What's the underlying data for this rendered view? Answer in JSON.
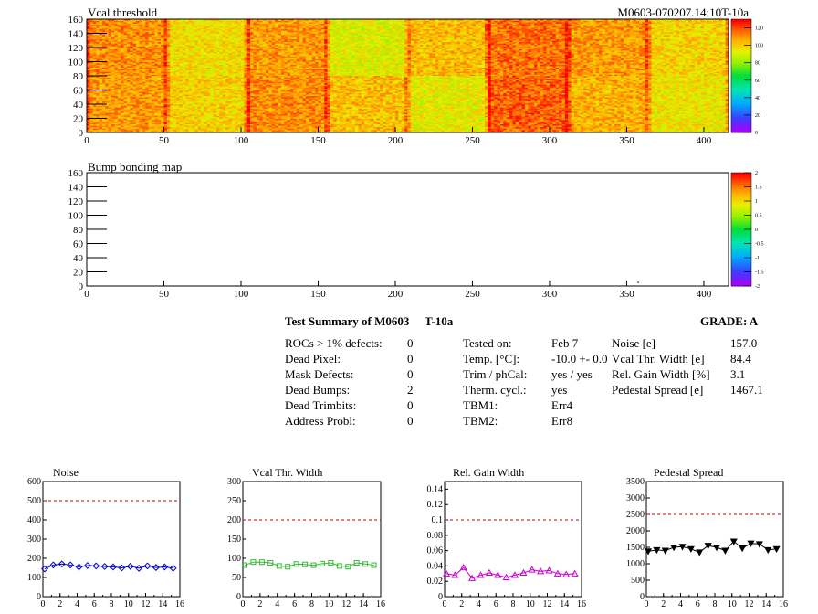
{
  "chart_data": [
    {
      "type": "heatmap",
      "title": "Vcal threshold",
      "module_label": "M0603-070207.14:10T-10a",
      "xlim": [
        0,
        416
      ],
      "ylim": [
        0,
        160
      ],
      "x_ticks": [
        "0",
        "50",
        "100",
        "150",
        "200",
        "250",
        "300",
        "350",
        "400"
      ],
      "y_ticks": [
        "0",
        "20",
        "40",
        "60",
        "80",
        "100",
        "120",
        "140",
        "160"
      ],
      "z_ticks": [
        "0",
        "20",
        "40",
        "60",
        "80",
        "100",
        "120"
      ],
      "zlim": [
        0,
        130
      ],
      "roc_blocks": [
        {
          "row": "top",
          "col": 0,
          "value": 112
        },
        {
          "row": "top",
          "col": 1,
          "value": 98
        },
        {
          "row": "top",
          "col": 2,
          "value": 110
        },
        {
          "row": "top",
          "col": 3,
          "value": 92
        },
        {
          "row": "top",
          "col": 4,
          "value": 104
        },
        {
          "row": "top",
          "col": 5,
          "value": 116
        },
        {
          "row": "top",
          "col": 6,
          "value": 110
        },
        {
          "row": "top",
          "col": 7,
          "value": 100
        },
        {
          "row": "bottom",
          "col": 0,
          "value": 110
        },
        {
          "row": "bottom",
          "col": 1,
          "value": 100
        },
        {
          "row": "bottom",
          "col": 2,
          "value": 112
        },
        {
          "row": "bottom",
          "col": 3,
          "value": 104
        },
        {
          "row": "bottom",
          "col": 4,
          "value": 94
        },
        {
          "row": "bottom",
          "col": 5,
          "value": 118
        },
        {
          "row": "bottom",
          "col": 6,
          "value": 106
        },
        {
          "row": "bottom",
          "col": 7,
          "value": 96
        }
      ]
    },
    {
      "type": "heatmap",
      "title": "Bump bonding map",
      "xlim": [
        0,
        416
      ],
      "ylim": [
        0,
        160
      ],
      "x_ticks": [
        "0",
        "50",
        "100",
        "150",
        "200",
        "250",
        "300",
        "350",
        "400"
      ],
      "y_ticks": [
        "0",
        "20",
        "40",
        "60",
        "80",
        "100",
        "120",
        "140",
        "160"
      ],
      "z_ticks": [
        "-2",
        "-1.5",
        "-1",
        "-0.5",
        "0",
        "0.5",
        "1",
        "1.5",
        "2"
      ],
      "zlim": [
        -2,
        2
      ],
      "points": [
        {
          "x": 357,
          "y": 6
        }
      ]
    },
    {
      "type": "line",
      "title": "Noise",
      "x": [
        0,
        1,
        2,
        3,
        4,
        5,
        6,
        7,
        8,
        9,
        10,
        11,
        12,
        13,
        14,
        15
      ],
      "values": [
        145,
        165,
        170,
        165,
        155,
        162,
        160,
        157,
        155,
        150,
        158,
        148,
        160,
        152,
        155,
        148
      ],
      "limit": 500,
      "xlim": [
        0,
        16
      ],
      "ylim": [
        0,
        600
      ],
      "x_ticks": [
        "0",
        "2",
        "4",
        "6",
        "8",
        "10",
        "12",
        "14",
        "16"
      ],
      "y_ticks": [
        "0",
        "100",
        "200",
        "300",
        "400",
        "500",
        "600"
      ],
      "color": "#0000cc",
      "marker": "diamond"
    },
    {
      "type": "line",
      "title": "Vcal Thr. Width",
      "x": [
        0,
        1,
        2,
        3,
        4,
        5,
        6,
        7,
        8,
        9,
        10,
        11,
        12,
        13,
        14,
        15
      ],
      "values": [
        82,
        90,
        90,
        88,
        80,
        78,
        85,
        84,
        82,
        86,
        88,
        80,
        78,
        88,
        85,
        82
      ],
      "limit": 200,
      "xlim": [
        0,
        16
      ],
      "ylim": [
        0,
        300
      ],
      "x_ticks": [
        "0",
        "2",
        "4",
        "6",
        "8",
        "10",
        "12",
        "14",
        "16"
      ],
      "y_ticks": [
        "0",
        "50",
        "100",
        "150",
        "200",
        "250",
        "300"
      ],
      "color": "#33bb33",
      "marker": "square"
    },
    {
      "type": "line",
      "title": "Rel. Gain Width",
      "x": [
        0,
        1,
        2,
        3,
        4,
        5,
        6,
        7,
        8,
        9,
        10,
        11,
        12,
        13,
        14,
        15
      ],
      "values": [
        0.03,
        0.028,
        0.038,
        0.024,
        0.028,
        0.031,
        0.028,
        0.025,
        0.028,
        0.031,
        0.035,
        0.033,
        0.034,
        0.03,
        0.029,
        0.03
      ],
      "limit": 0.1,
      "xlim": [
        0,
        16
      ],
      "ylim": [
        0,
        0.15
      ],
      "x_ticks": [
        "0",
        "2",
        "4",
        "6",
        "8",
        "10",
        "12",
        "14",
        "16"
      ],
      "y_ticks": [
        "0",
        "0.02",
        "0.04",
        "0.06",
        "0.08",
        "0.1",
        "0.12",
        "0.14"
      ],
      "color": "#cc00cc",
      "marker": "triangle"
    },
    {
      "type": "line",
      "title": "Pedestal Spread",
      "x": [
        0,
        1,
        2,
        3,
        4,
        5,
        6,
        7,
        8,
        9,
        10,
        11,
        12,
        13,
        14,
        15
      ],
      "values": [
        1380,
        1420,
        1400,
        1500,
        1520,
        1450,
        1350,
        1550,
        1500,
        1400,
        1680,
        1470,
        1620,
        1600,
        1420,
        1450
      ],
      "limit": 2500,
      "xlim": [
        0,
        16
      ],
      "ylim": [
        0,
        3500
      ],
      "x_ticks": [
        "0",
        "2",
        "4",
        "6",
        "8",
        "10",
        "12",
        "14",
        "16"
      ],
      "y_ticks": [
        "0",
        "500",
        "1000",
        "1500",
        "2000",
        "2500",
        "3000",
        "3500"
      ],
      "color": "#000000",
      "marker": "triangle-down"
    }
  ],
  "summary": {
    "title": "Test Summary of M0603",
    "title_suffix": "T-10a",
    "grade": "GRADE:  A",
    "defects": [
      {
        "label": "ROCs > 1% defects:",
        "value": "0"
      },
      {
        "label": "Dead Pixel:",
        "value": "0"
      },
      {
        "label": "Mask Defects:",
        "value": "0"
      },
      {
        "label": "Dead Bumps:",
        "value": "2"
      },
      {
        "label": "Dead Trimbits:",
        "value": "0"
      },
      {
        "label": "Address Probl:",
        "value": "0"
      }
    ],
    "conditions": [
      {
        "label": "Tested on:",
        "value": "Feb 7"
      },
      {
        "label": "Temp. [°C]:",
        "value": "-10.0 +- 0.0"
      },
      {
        "label": "Trim / phCal:",
        "value": "yes / yes"
      },
      {
        "label": "Therm. cycl.:",
        "value": "yes"
      },
      {
        "label": "TBM1:",
        "value": "Err4"
      },
      {
        "label": "TBM2:",
        "value": "Err8"
      }
    ],
    "results": [
      {
        "label": "Noise [e]",
        "value": "157.0"
      },
      {
        "label": "Vcal Thr. Width [e]",
        "value": "84.4"
      },
      {
        "label": "Rel. Gain Width [%]",
        "value": "3.1"
      },
      {
        "label": "Pedestal Spread [e]",
        "value": "1467.1"
      }
    ]
  }
}
